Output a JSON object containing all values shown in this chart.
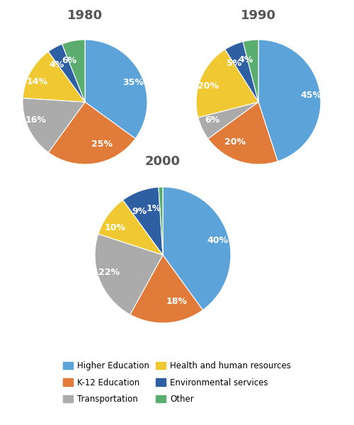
{
  "charts": [
    {
      "title": "1980",
      "values": [
        35,
        25,
        16,
        14,
        4,
        6
      ],
      "labels": [
        "35%",
        "25%",
        "16%",
        "14%",
        "4%",
        "6%"
      ],
      "startangle": 90
    },
    {
      "title": "1990",
      "values": [
        45,
        20,
        6,
        20,
        5,
        4
      ],
      "labels": [
        "45%",
        "20%",
        "6%",
        "20%",
        "5%",
        "4%"
      ],
      "startangle": 90
    },
    {
      "title": "2000",
      "values": [
        40,
        18,
        22,
        10,
        9,
        1
      ],
      "labels": [
        "40%",
        "18%",
        "22%",
        "10%",
        "9%",
        "1%"
      ],
      "startangle": 90
    }
  ],
  "colors": [
    "#5BA3D9",
    "#E07B39",
    "#ABABAB",
    "#F0C832",
    "#2E5FA3",
    "#5BAD6F"
  ],
  "legend_labels": [
    "Higher Education",
    "K-12 Education",
    "Transportation",
    "Health and human resources",
    "Environmental services",
    "Other"
  ],
  "background_color": "#FFFFFF",
  "title_fontsize": 13,
  "label_fontsize": 9
}
